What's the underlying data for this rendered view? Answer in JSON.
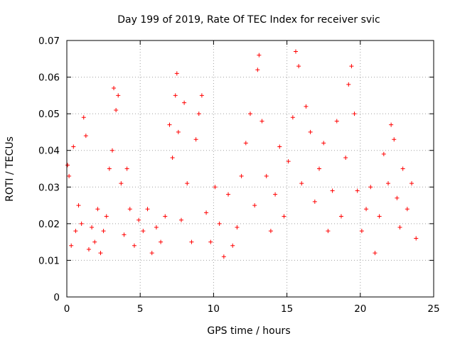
{
  "chart_data": {
    "type": "scatter",
    "title": "Day 199 of 2019, Rate Of TEC Index for receiver svic",
    "xlabel": "GPS time / hours",
    "ylabel": "ROTI / TECUs",
    "xlim": [
      0,
      25
    ],
    "ylim": [
      0,
      0.07
    ],
    "xticks": [
      0,
      5,
      10,
      15,
      20,
      25
    ],
    "xtick_labels": [
      "0",
      "5",
      "10",
      "15",
      "20",
      "25"
    ],
    "yticks": [
      0,
      0.01,
      0.02,
      0.03,
      0.04,
      0.05,
      0.06,
      0.07
    ],
    "ytick_labels": [
      "0",
      "0.01",
      "0.02",
      "0.03",
      "0.04",
      "0.05",
      "0.06",
      "0.07"
    ],
    "grid": true,
    "marker": "plus",
    "color": "#ff0000",
    "series": [
      {
        "name": "ROTI",
        "x": [
          0.05,
          0.15,
          0.3,
          0.45,
          0.6,
          0.8,
          1.0,
          1.15,
          1.3,
          1.5,
          1.7,
          1.9,
          2.1,
          2.3,
          2.5,
          2.7,
          2.9,
          3.1,
          3.2,
          3.35,
          3.5,
          3.7,
          3.9,
          4.1,
          4.3,
          4.6,
          4.9,
          5.2,
          5.5,
          5.8,
          6.1,
          6.4,
          6.7,
          7.0,
          7.2,
          7.4,
          7.5,
          7.6,
          7.8,
          8.0,
          8.2,
          8.5,
          8.8,
          9.0,
          9.2,
          9.5,
          9.8,
          10.1,
          10.4,
          10.7,
          11.0,
          11.3,
          11.6,
          11.9,
          12.2,
          12.5,
          12.8,
          13.0,
          13.1,
          13.3,
          13.6,
          13.9,
          14.2,
          14.5,
          14.8,
          15.1,
          15.4,
          15.6,
          15.8,
          16.0,
          16.3,
          16.6,
          16.9,
          17.2,
          17.5,
          17.8,
          18.1,
          18.4,
          18.7,
          19.0,
          19.2,
          19.4,
          19.6,
          19.8,
          20.1,
          20.4,
          20.7,
          21.0,
          21.3,
          21.6,
          21.9,
          22.1,
          22.3,
          22.5,
          22.7,
          22.9,
          23.2,
          23.5,
          23.8
        ],
        "y": [
          0.036,
          0.033,
          0.014,
          0.041,
          0.018,
          0.025,
          0.02,
          0.049,
          0.044,
          0.013,
          0.019,
          0.015,
          0.024,
          0.012,
          0.018,
          0.022,
          0.035,
          0.04,
          0.057,
          0.051,
          0.055,
          0.031,
          0.017,
          0.035,
          0.024,
          0.014,
          0.021,
          0.018,
          0.024,
          0.012,
          0.019,
          0.015,
          0.022,
          0.047,
          0.038,
          0.055,
          0.061,
          0.045,
          0.021,
          0.053,
          0.031,
          0.015,
          0.043,
          0.05,
          0.055,
          0.023,
          0.015,
          0.03,
          0.02,
          0.011,
          0.028,
          0.014,
          0.019,
          0.033,
          0.042,
          0.05,
          0.025,
          0.062,
          0.066,
          0.048,
          0.033,
          0.018,
          0.028,
          0.041,
          0.022,
          0.037,
          0.049,
          0.067,
          0.063,
          0.031,
          0.052,
          0.045,
          0.026,
          0.035,
          0.042,
          0.018,
          0.029,
          0.048,
          0.022,
          0.038,
          0.058,
          0.063,
          0.05,
          0.029,
          0.018,
          0.024,
          0.03,
          0.012,
          0.022,
          0.039,
          0.031,
          0.047,
          0.043,
          0.027,
          0.019,
          0.035,
          0.024,
          0.031,
          0.016
        ]
      }
    ]
  }
}
